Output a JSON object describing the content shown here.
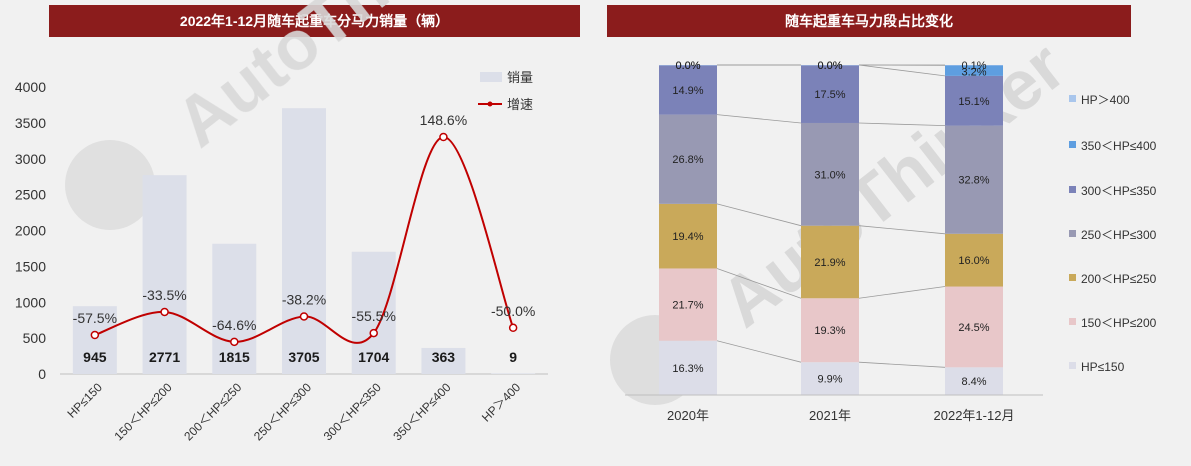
{
  "chart_data": [
    {
      "type": "bar",
      "title": "2022年1-12月随车起重车分马力销量（辆）",
      "categories": [
        "HP≤150",
        "150＜HP≤200",
        "200＜HP≤250",
        "250＜HP≤300",
        "300＜HP≤350",
        "350＜HP≤400",
        "HP＞400"
      ],
      "ylim": [
        0,
        4000
      ],
      "yticks": [
        0,
        500,
        1000,
        1500,
        2000,
        2500,
        3000,
        3500,
        4000
      ],
      "series": [
        {
          "name": "销量",
          "type": "bar",
          "values": [
            945,
            2771,
            1815,
            3705,
            1704,
            363,
            9
          ],
          "labels": [
            "945",
            "2771",
            "1815",
            "3705",
            "1704",
            "363",
            "9"
          ]
        },
        {
          "name": "增速",
          "type": "line",
          "values": [
            -57.5,
            -33.5,
            -64.6,
            -38.2,
            -55.5,
            148.6,
            -50.0
          ],
          "labels": [
            "-57.5%",
            "-33.5%",
            "-64.6%",
            "-38.2%",
            "-55.5%",
            "148.6%",
            "-50.0%"
          ]
        }
      ],
      "legend": "top-right",
      "grid": false
    },
    {
      "type": "bar",
      "stacked": true,
      "title": "随车起重车马力段占比变化",
      "categories": [
        "2020年",
        "2021年",
        "2022年1-12月"
      ],
      "series": [
        {
          "name": "HP≤150",
          "values": [
            16.3,
            9.9,
            8.4
          ],
          "labels": [
            "16.3%",
            "9.9%",
            "8.4%"
          ]
        },
        {
          "name": "150＜HP≤200",
          "values": [
            21.7,
            19.3,
            24.5
          ],
          "labels": [
            "21.7%",
            "19.3%",
            "24.5%"
          ]
        },
        {
          "name": "200＜HP≤250",
          "values": [
            19.4,
            21.9,
            16.0
          ],
          "labels": [
            "19.4%",
            "21.9%",
            "16.0%"
          ]
        },
        {
          "name": "250＜HP≤300",
          "values": [
            26.8,
            31.0,
            32.8
          ],
          "labels": [
            "26.8%",
            "31.0%",
            "32.8%"
          ]
        },
        {
          "name": "300＜HP≤350",
          "values": [
            14.9,
            17.5,
            15.1
          ],
          "labels": [
            "14.9%",
            "17.5%",
            "15.1%"
          ]
        },
        {
          "name": "350＜HP≤400",
          "values": [
            0.0,
            0.0,
            3.2
          ],
          "labels": [
            "0.0%",
            "0.0%",
            "3.2%"
          ]
        },
        {
          "name": "HP＞400",
          "values": [
            0.0,
            0.0,
            0.1
          ],
          "labels": [
            "0.0%",
            "0.0%",
            "0.1%"
          ]
        }
      ],
      "legend": "right",
      "grid": false
    }
  ],
  "colors": {
    "title_bg": "#8b1c1c",
    "bar_left": "#dcdfe9",
    "line": "#c00000",
    "stack": [
      "#dcdde8",
      "#e8c7c9",
      "#c9a95a",
      "#9899b3",
      "#7b82b8",
      "#5e9ee0",
      "#a9c6ec"
    ]
  },
  "watermark": {
    "brand": "AutoThinker",
    "cn": "汽车智库"
  }
}
